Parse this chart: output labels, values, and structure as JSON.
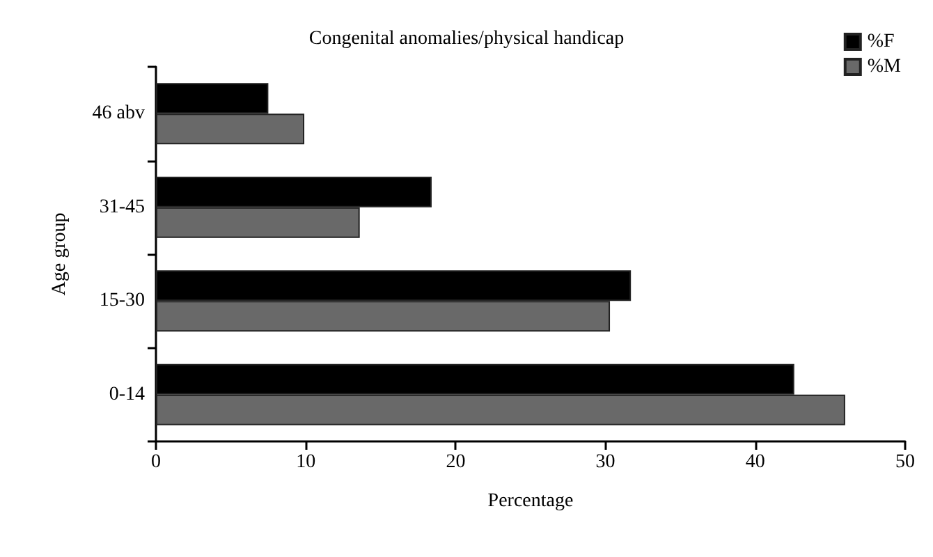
{
  "chart_data": {
    "type": "bar",
    "orientation": "horizontal",
    "title": "Congenital anomalies/physical handicap",
    "xlabel": "Percentage",
    "ylabel": "Age group",
    "categories": [
      "46 abv",
      "31-45",
      "15-30",
      "0-14"
    ],
    "series": [
      {
        "name": "%F",
        "color": "#000000",
        "values": [
          7.5,
          18.4,
          31.7,
          42.6
        ]
      },
      {
        "name": "%M",
        "color": "#696969",
        "values": [
          9.9,
          13.6,
          30.3,
          46.0
        ]
      }
    ],
    "xlim": [
      0,
      50
    ],
    "xticks": [
      0,
      10,
      20,
      30,
      40,
      50
    ],
    "grid": false,
    "legend": "top right"
  }
}
